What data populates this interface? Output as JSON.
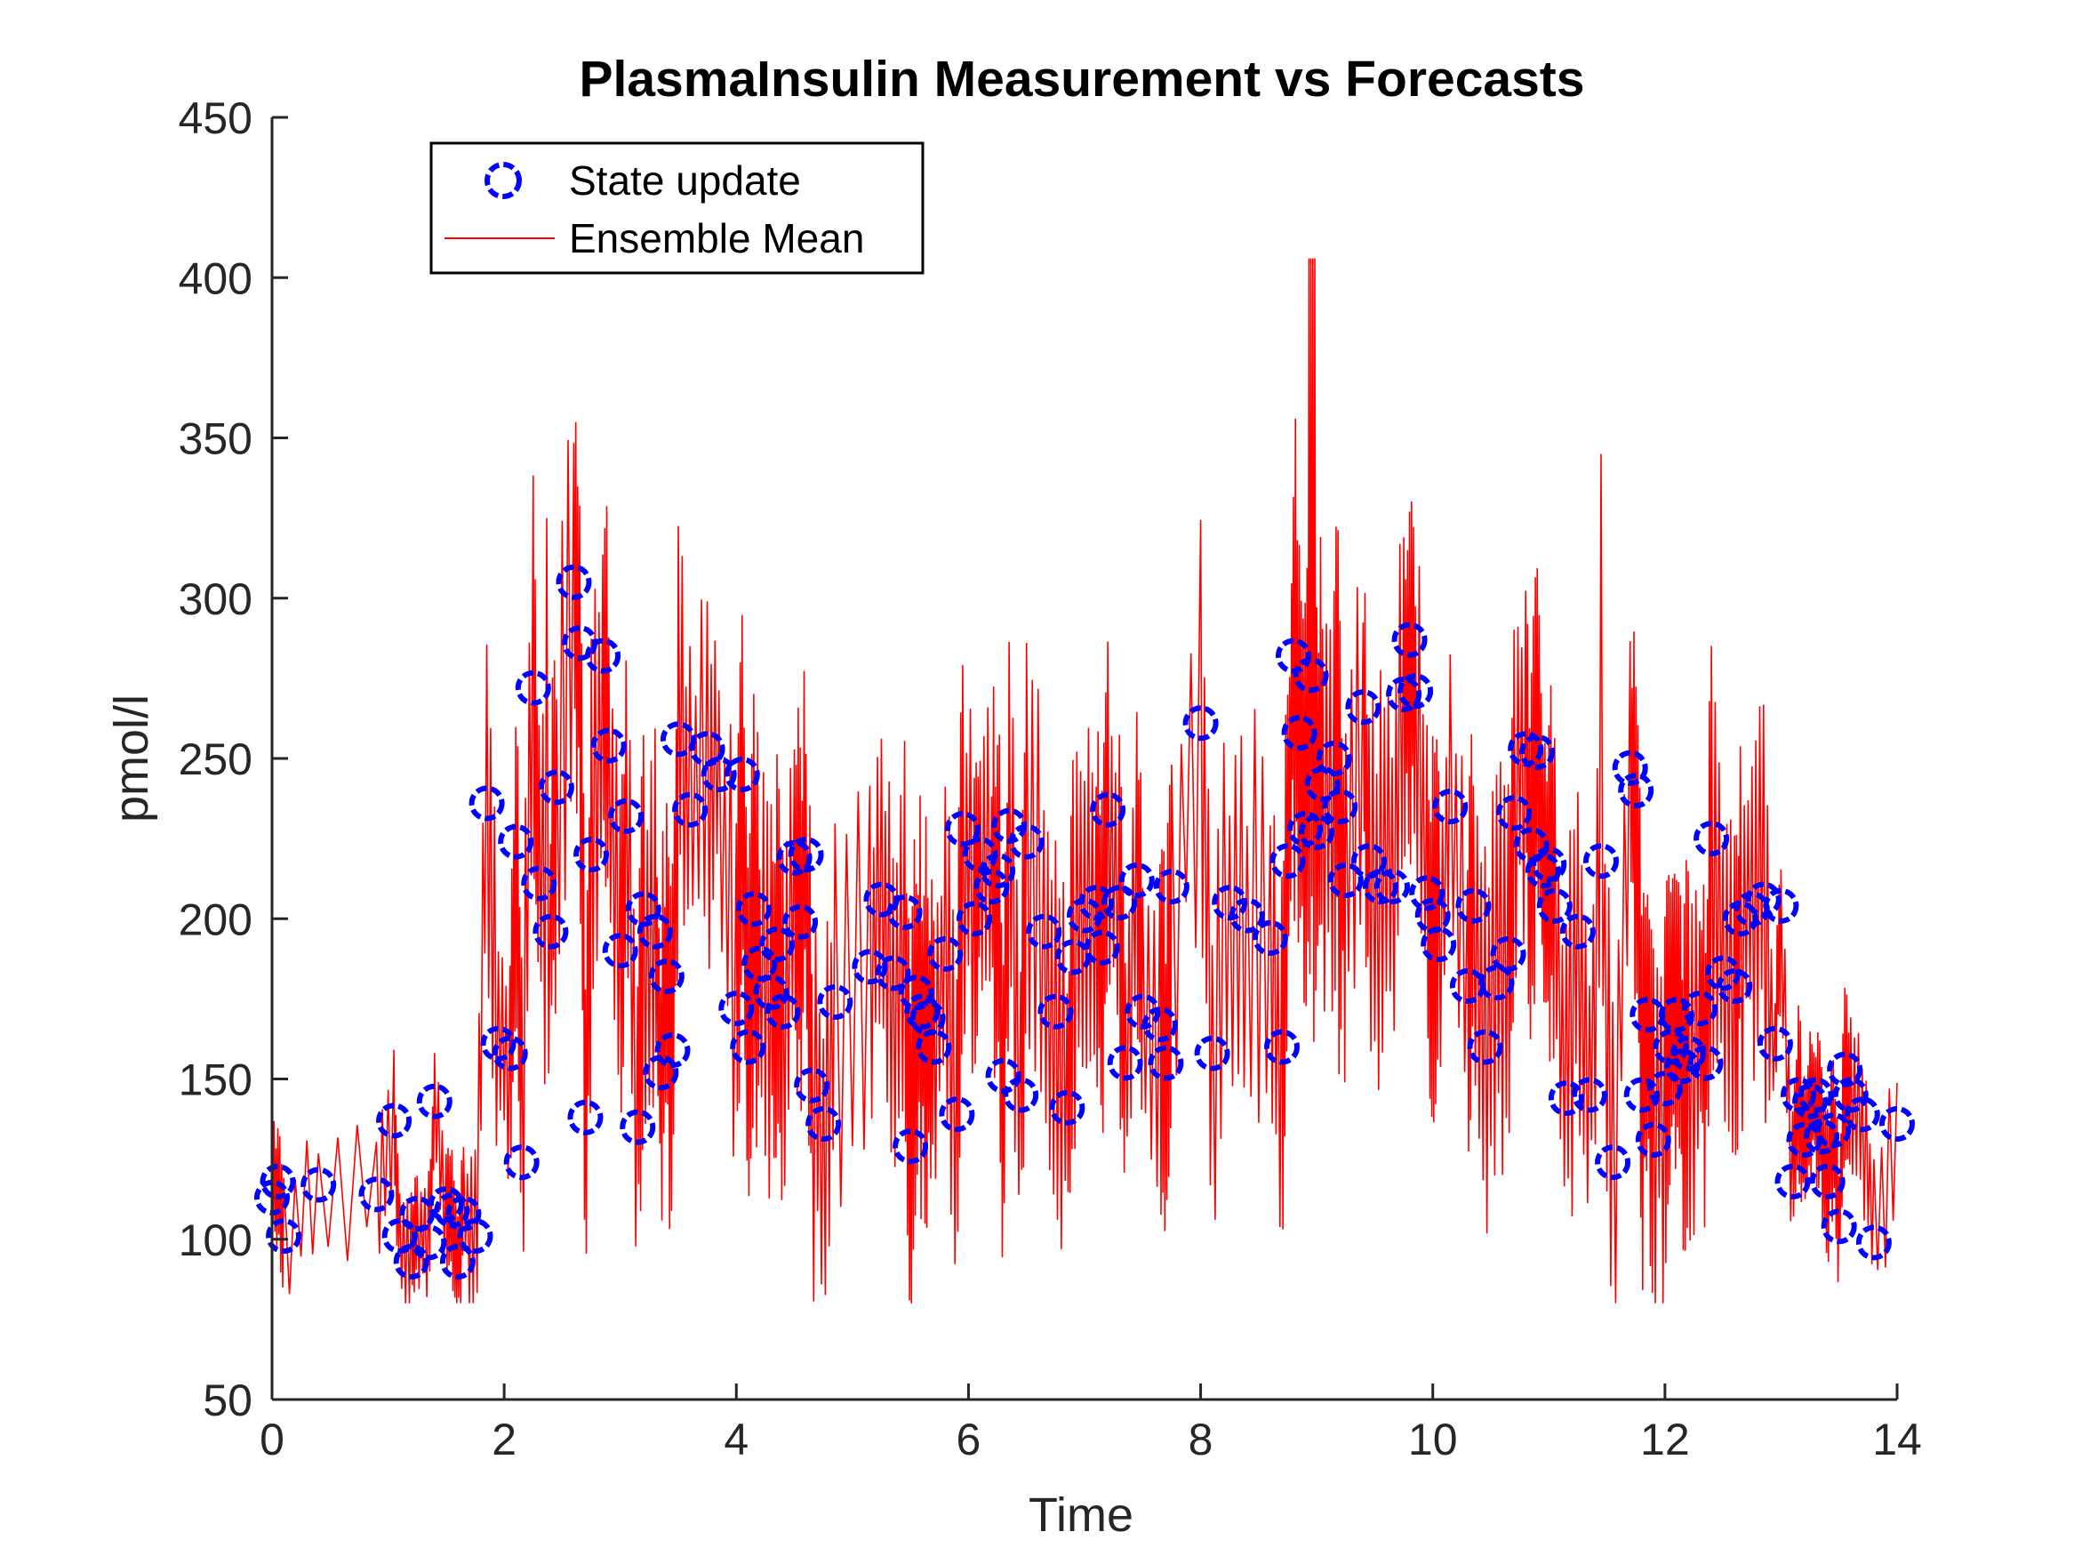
{
  "chart_data": {
    "type": "line",
    "title": "PlasmaInsulin Measurement vs Forecasts",
    "xlabel": "Time",
    "ylabel": "pmol/l",
    "xlim": [
      0,
      14
    ],
    "ylim": [
      50,
      450
    ],
    "xticks": [
      "0",
      "2",
      "4",
      "6",
      "8",
      "10",
      "12",
      "14"
    ],
    "yticks": [
      "50",
      "100",
      "150",
      "200",
      "250",
      "300",
      "350",
      "400",
      "450"
    ],
    "grid": false,
    "legend_position": "top-left",
    "colors": {
      "points": "#0000ff",
      "line": "#ff0000",
      "axis": "#262626"
    },
    "series": [
      {
        "name": "State update",
        "style": "circle",
        "x": [
          0.0,
          0.05,
          0.1,
          0.4,
          0.9,
          1.05,
          1.1,
          1.2,
          1.25,
          1.35,
          1.4,
          1.5,
          1.55,
          1.6,
          1.65,
          1.75,
          1.85,
          1.95,
          2.05,
          2.1,
          2.15,
          2.25,
          2.3,
          2.4,
          2.45,
          2.6,
          2.65,
          2.7,
          2.75,
          2.85,
          2.9,
          3.0,
          3.05,
          3.15,
          3.2,
          3.3,
          3.35,
          3.4,
          3.45,
          3.5,
          3.6,
          3.75,
          3.85,
          4.0,
          4.05,
          4.1,
          4.15,
          4.2,
          4.3,
          4.35,
          4.4,
          4.5,
          4.55,
          4.6,
          4.65,
          4.75,
          4.85,
          5.15,
          5.25,
          5.35,
          5.45,
          5.5,
          5.55,
          5.6,
          5.65,
          5.7,
          5.8,
          5.9,
          5.95,
          6.05,
          6.1,
          6.2,
          6.25,
          6.3,
          6.35,
          6.45,
          6.5,
          6.65,
          6.75,
          6.85,
          6.9,
          7.0,
          7.1,
          7.15,
          7.2,
          7.3,
          7.35,
          7.45,
          7.5,
          7.65,
          7.7,
          7.75,
          8.0,
          8.1,
          8.25,
          8.4,
          8.6,
          8.7,
          8.75,
          8.8,
          8.85,
          8.9,
          8.95,
          9.0,
          9.05,
          9.15,
          9.2,
          9.25,
          9.4,
          9.45,
          9.55,
          9.65,
          9.75,
          9.8,
          9.85,
          9.95,
          10.0,
          10.05,
          10.15,
          10.3,
          10.35,
          10.45,
          10.55,
          10.65,
          10.7,
          10.8,
          10.85,
          10.9,
          10.95,
          11.0,
          11.05,
          11.15,
          11.25,
          11.35,
          11.45,
          11.55,
          11.7,
          11.75,
          11.8,
          11.85,
          11.9,
          12.0,
          12.05,
          12.1,
          12.15,
          12.2,
          12.3,
          12.35,
          12.4,
          12.5,
          12.6,
          12.65,
          12.75,
          12.85,
          12.95,
          13.0,
          13.1,
          13.15,
          13.2,
          13.25,
          13.3,
          13.35,
          13.4,
          13.45,
          13.5,
          13.55,
          13.6,
          13.7,
          13.8,
          14.0
        ],
        "y": [
          113,
          118,
          101,
          117,
          114,
          137,
          101,
          93,
          108,
          99,
          143,
          111,
          109,
          93,
          108,
          101,
          236,
          161,
          158,
          224,
          124,
          272,
          211,
          196,
          241,
          305,
          286,
          138,
          220,
          282,
          254,
          190,
          232,
          135,
          203,
          196,
          152,
          182,
          159,
          256,
          234,
          253,
          245,
          172,
          245,
          160,
          203,
          186,
          177,
          192,
          171,
          219,
          199,
          220,
          148,
          136,
          174,
          185,
          206,
          183,
          202,
          129,
          177,
          171,
          169,
          160,
          189,
          139,
          228,
          200,
          220,
          210,
          215,
          151,
          229,
          145,
          224,
          196,
          171,
          141,
          188,
          201,
          205,
          191,
          234,
          205,
          155,
          212,
          171,
          167,
          155,
          210,
          261,
          158,
          205,
          201,
          194,
          160,
          218,
          282,
          258,
          228,
          276,
          227,
          242,
          250,
          235,
          212,
          266,
          218,
          210,
          210,
          270,
          287,
          271,
          208,
          201,
          192,
          235,
          179,
          204,
          160,
          180,
          189,
          233,
          253,
          223,
          252,
          215,
          217,
          204,
          144,
          196,
          145,
          218,
          124,
          247,
          240,
          145,
          170,
          131,
          147,
          160,
          170,
          154,
          158,
          172,
          155,
          225,
          183,
          179,
          200,
          203,
          206,
          161,
          204,
          118,
          145,
          131,
          143,
          145,
          132,
          118,
          134,
          104,
          153,
          145,
          139,
          99,
          136
        ]
      },
      {
        "name": "Ensemble Mean",
        "style": "line",
        "description_values": "high-frequency forecast trace oscillating around the measurements between about 80 and 406"
      }
    ],
    "legend": [
      "State update",
      "Ensemble Mean"
    ]
  }
}
